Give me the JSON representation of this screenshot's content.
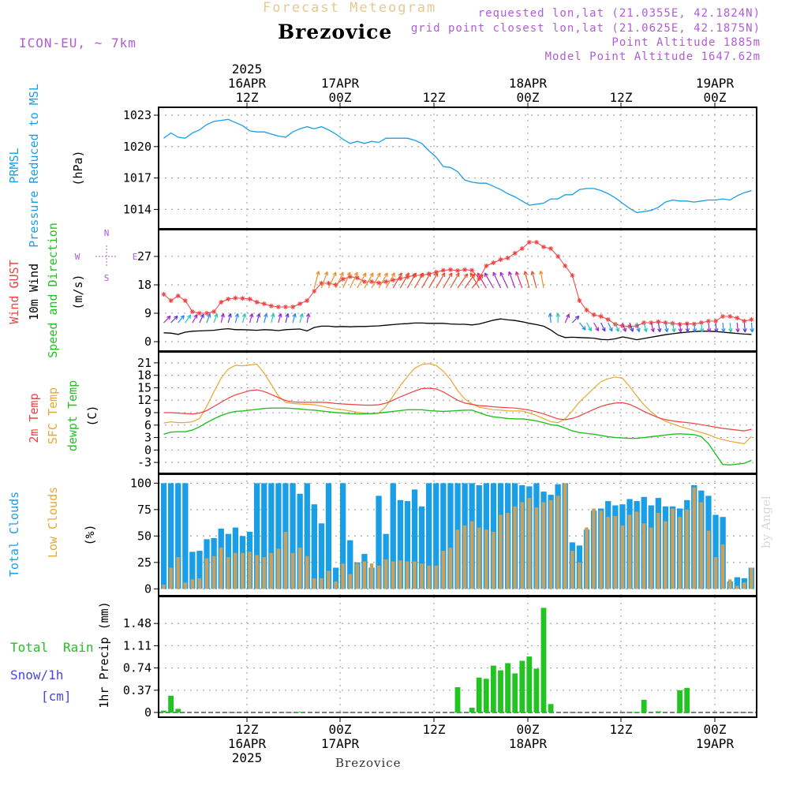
{
  "header": {
    "product": "Forecast Meteogram",
    "station": "Brezovice",
    "model": "ICON-EU, ~ 7km",
    "requested": "requested lon,lat (21.0355E, 42.1824N)",
    "gridpoint": "grid point closest lon,lat (21.0625E, 42.1875N)",
    "altitude": "Point Altitude 1885m",
    "model_altitude": "Model Point Altitude 1647.62m"
  },
  "footer": {
    "station": "Brezovice",
    "credit": "by Angel"
  },
  "colors": {
    "pressure": "#1a9ee6",
    "gust": "#f04040",
    "wind": "#000000",
    "t2m": "#f04040",
    "tsfc": "#e6a832",
    "dewpt": "#22c022",
    "total_clouds": "#1a9ee6",
    "low_clouds": "#c8a060",
    "rain": "#22c422",
    "snow": "#4646e6",
    "label_blue": "#1a9ee6",
    "label_red": "#f04040",
    "label_green": "#22c022",
    "label_gold": "#e6a832",
    "label_purple": "#b05cd6",
    "grid": "#999999"
  },
  "time_axis": {
    "top_labels": [
      [
        "2025",
        "16APR",
        "12Z"
      ],
      [
        "",
        "17APR",
        "00Z"
      ],
      [
        "",
        "",
        "12Z"
      ],
      [
        "",
        "18APR",
        "00Z"
      ],
      [
        "",
        "",
        "12Z"
      ],
      [
        "",
        "19APR",
        "00Z"
      ]
    ],
    "bottom_labels": [
      [
        "12Z",
        "16APR",
        "2025"
      ],
      [
        "00Z",
        "17APR",
        ""
      ],
      [
        "12Z",
        "",
        ""
      ],
      [
        "00Z",
        "18APR",
        ""
      ],
      [
        "12Z",
        "",
        ""
      ],
      [
        "00Z",
        "19APR",
        ""
      ]
    ]
  },
  "chart_data": [
    {
      "type": "line",
      "panel": "pressure",
      "ylabel": [
        "PRMSL",
        "Pressure Reduced to MSL"
      ],
      "unit": "(hPa)",
      "ylim": [
        1012.6,
        1023.3
      ],
      "yticks": [
        "1023",
        "1020",
        "1017",
        "1014"
      ],
      "yticks_values": [
        1023,
        1020,
        1017,
        1014
      ],
      "grid": true,
      "series": [
        {
          "name": "PRMSL",
          "values": [
            1020.8,
            1021.3,
            1020.9,
            1020.8,
            1021.3,
            1021.6,
            1022.1,
            1022.4,
            1022.5,
            1022.6,
            1022.3,
            1022.0,
            1021.5,
            1021.4,
            1021.4,
            1021.2,
            1021.0,
            1020.9,
            1021.4,
            1021.7,
            1021.9,
            1021.7,
            1021.9,
            1021.6,
            1021.2,
            1020.7,
            1020.3,
            1020.5,
            1020.3,
            1020.5,
            1020.4,
            1020.8,
            1020.8,
            1020.8,
            1020.8,
            1020.6,
            1020.3,
            1019.6,
            1019.0,
            1018.1,
            1018.0,
            1017.6,
            1016.8,
            1016.6,
            1016.5,
            1016.5,
            1016.2,
            1015.9,
            1015.5,
            1015.2,
            1014.8,
            1014.4,
            1014.5,
            1014.6,
            1015.0,
            1015.0,
            1015.4,
            1015.4,
            1015.9,
            1016.0,
            1016.0,
            1015.8,
            1015.5,
            1015.1,
            1014.6,
            1014.1,
            1013.7,
            1013.8,
            1013.9,
            1014.2,
            1014.7,
            1014.9,
            1014.8,
            1014.8,
            1014.7,
            1014.8,
            1014.9,
            1014.9,
            1015.0,
            1014.9,
            1015.3,
            1015.6,
            1015.8
          ]
        }
      ]
    },
    {
      "type": "line",
      "panel": "wind",
      "ylabel": [
        "Wind GUST",
        "10m Wind",
        "Speed and Direction"
      ],
      "unit": "(m/s)",
      "compass": {
        "n": "N",
        "s": "S",
        "e": "E",
        "w": "W"
      },
      "ylim": [
        -1.5,
        34
      ],
      "yticks": [
        "27",
        "18",
        "9",
        "0"
      ],
      "yticks_values": [
        27,
        18,
        9,
        0
      ],
      "grid": true,
      "series": [
        {
          "name": "Wind GUST",
          "values": [
            15.0,
            13.0,
            14.5,
            13.0,
            9.5,
            9.0,
            9.0,
            9.5,
            12.5,
            13.5,
            13.8,
            13.7,
            13.5,
            12.5,
            12.0,
            11.3,
            11.0,
            11.0,
            11.0,
            12.0,
            13.0,
            16.0,
            18.5,
            18.5,
            18.0,
            19.8,
            20.6,
            20.2,
            19.0,
            19.0,
            18.6,
            19.0,
            19.5,
            20.0,
            20.5,
            21.0,
            21.0,
            21.5,
            22.0,
            22.6,
            22.8,
            22.5,
            22.8,
            22.6,
            20.0,
            24.0,
            25.0,
            26.0,
            26.5,
            28.0,
            29.5,
            31.5,
            31.5,
            30.0,
            29.5,
            27.0,
            24.0,
            21.0,
            13.0,
            10.0,
            8.5,
            8.0,
            7.0,
            5.5,
            5.0,
            4.8,
            5.0,
            6.0,
            6.0,
            6.3,
            6.0,
            5.8,
            5.5,
            5.7,
            5.6,
            6.0,
            6.5,
            6.5,
            8.0,
            8.0,
            7.5,
            6.5,
            7.0
          ]
        },
        {
          "name": "10m Wind",
          "values": [
            2.8,
            2.7,
            2.3,
            3.0,
            3.3,
            3.4,
            3.5,
            3.6,
            3.9,
            4.1,
            3.8,
            3.8,
            3.7,
            3.6,
            3.8,
            3.7,
            3.5,
            3.8,
            3.9,
            4.0,
            3.4,
            4.5,
            4.9,
            4.9,
            4.7,
            4.8,
            4.7,
            4.8,
            4.8,
            4.9,
            5.0,
            5.2,
            5.4,
            5.6,
            5.7,
            5.9,
            5.9,
            5.8,
            5.8,
            5.8,
            5.6,
            5.5,
            5.5,
            5.3,
            5.6,
            6.2,
            6.8,
            7.2,
            6.9,
            6.7,
            6.3,
            5.8,
            5.4,
            4.9,
            3.7,
            2.1,
            1.3,
            1.4,
            1.3,
            1.2,
            1.1,
            0.7,
            0.6,
            0.9,
            1.5,
            1.1,
            0.6,
            1.0,
            1.4,
            1.8,
            2.2,
            2.5,
            2.8,
            3.0,
            3.2,
            3.3,
            3.3,
            3.2,
            3.0,
            2.8,
            2.6,
            2.4,
            2.3
          ]
        },
        {
          "name": "Wind direction (deg, from)",
          "values": [
            225,
            225,
            220,
            215,
            210,
            205,
            200,
            200,
            195,
            195,
            195,
            195,
            195,
            195,
            195,
            195,
            195,
            195,
            195,
            195,
            190,
            195,
            200,
            205,
            205,
            205,
            205,
            210,
            210,
            210,
            210,
            210,
            210,
            210,
            210,
            210,
            210,
            210,
            210,
            210,
            210,
            215,
            215,
            220,
            150,
            150,
            150,
            155,
            155,
            160,
            160,
            165,
            165,
            170,
            175,
            180,
            205,
            225,
            320,
            330,
            330,
            335,
            335,
            340,
            340,
            340,
            345,
            345,
            345,
            350,
            350,
            350,
            355,
            355,
            355,
            355,
            355,
            355,
            355,
            355,
            355,
            355,
            355
          ]
        }
      ]
    },
    {
      "type": "line",
      "panel": "temperature",
      "ylabel": [
        "2m Temp",
        "SFC Temp",
        "dewpt Temp"
      ],
      "unit": "(C)",
      "ylim": [
        -4.5,
        22.5
      ],
      "yticks": [
        "21",
        "18",
        "15",
        "12",
        "9",
        "6",
        "3",
        "0",
        "-3"
      ],
      "yticks_values": [
        21,
        18,
        15,
        12,
        9,
        6,
        3,
        0,
        -3
      ],
      "grid": true,
      "series": [
        {
          "name": "2m Temp",
          "values": [
            9.0,
            9.0,
            8.9,
            8.8,
            8.7,
            8.9,
            9.5,
            10.5,
            11.5,
            12.5,
            13.3,
            13.8,
            14.3,
            14.5,
            14.1,
            13.4,
            12.6,
            11.9,
            11.6,
            11.5,
            11.5,
            11.5,
            11.5,
            11.4,
            11.2,
            11.1,
            11.0,
            10.9,
            10.8,
            10.8,
            10.9,
            11.3,
            12.0,
            12.8,
            13.5,
            14.2,
            14.8,
            14.9,
            14.7,
            14.0,
            13.0,
            12.0,
            11.3,
            11.0,
            10.7,
            10.6,
            10.4,
            10.3,
            10.2,
            10.1,
            9.9,
            9.6,
            9.2,
            8.7,
            8.1,
            7.5,
            7.3,
            7.6,
            8.2,
            9.0,
            9.8,
            10.5,
            11.0,
            11.3,
            11.4,
            11.0,
            10.2,
            9.3,
            8.5,
            7.8,
            7.3,
            7.0,
            6.8,
            6.6,
            6.4,
            6.1,
            5.8,
            5.5,
            5.2,
            5.0,
            4.8,
            4.6,
            5.0
          ]
        },
        {
          "name": "SFC Temp",
          "values": [
            6.5,
            6.8,
            6.6,
            6.6,
            6.8,
            7.6,
            10.5,
            14.0,
            17.3,
            19.5,
            20.4,
            20.3,
            20.5,
            20.7,
            18.5,
            15.8,
            13.0,
            11.5,
            11.2,
            11.1,
            11.0,
            10.9,
            10.6,
            10.2,
            9.9,
            9.7,
            9.4,
            9.1,
            8.9,
            8.7,
            8.9,
            10.5,
            13.0,
            15.5,
            17.7,
            19.7,
            20.6,
            20.8,
            20.4,
            19.0,
            17.0,
            14.3,
            12.3,
            11.1,
            10.3,
            10.0,
            9.7,
            9.6,
            9.4,
            9.4,
            9.4,
            8.9,
            8.3,
            7.6,
            6.8,
            6.6,
            7.5,
            9.4,
            11.6,
            13.2,
            14.9,
            16.5,
            17.2,
            17.6,
            17.3,
            15.3,
            13.0,
            10.9,
            9.2,
            7.8,
            6.9,
            6.3,
            5.7,
            5.2,
            4.7,
            4.2,
            3.7,
            3.0,
            2.5,
            2.1,
            1.8,
            1.5,
            3.3
          ]
        },
        {
          "name": "dewpt Temp",
          "values": [
            3.8,
            4.3,
            4.4,
            4.4,
            4.8,
            5.6,
            6.6,
            7.5,
            8.3,
            8.9,
            9.3,
            9.4,
            9.6,
            9.8,
            10.0,
            10.1,
            10.1,
            10.1,
            10.0,
            9.9,
            9.7,
            9.6,
            9.4,
            9.2,
            9.0,
            8.9,
            8.8,
            8.7,
            8.7,
            8.8,
            8.9,
            9.1,
            9.3,
            9.5,
            9.7,
            9.7,
            9.7,
            9.5,
            9.4,
            9.3,
            9.4,
            9.5,
            9.6,
            9.6,
            9.0,
            8.4,
            8.0,
            7.8,
            7.6,
            7.5,
            7.5,
            7.3,
            7.0,
            6.6,
            6.1,
            5.9,
            5.3,
            4.6,
            4.2,
            4.0,
            3.8,
            3.5,
            3.2,
            3.0,
            2.9,
            2.8,
            2.8,
            3.0,
            3.2,
            3.4,
            3.6,
            3.8,
            3.9,
            3.8,
            3.7,
            3.2,
            1.5,
            -1.0,
            -3.5,
            -3.6,
            -3.4,
            -3.2,
            -2.5
          ]
        }
      ]
    },
    {
      "type": "bar",
      "panel": "clouds",
      "ylabel": [
        "Total Clouds",
        "Low Clouds"
      ],
      "unit": "(%)",
      "ylim": [
        -2,
        104
      ],
      "yticks": [
        "100",
        "75",
        "50",
        "25",
        "0"
      ],
      "yticks_values": [
        100,
        75,
        50,
        25,
        0
      ],
      "grid": true,
      "series": [
        {
          "name": "Total Clouds",
          "values": [
            100,
            100,
            100,
            100,
            35,
            36,
            47,
            48,
            57,
            52,
            58,
            50,
            54,
            100,
            100,
            100,
            100,
            100,
            100,
            90,
            100,
            80,
            62,
            100,
            20,
            100,
            46,
            25,
            33,
            20,
            88,
            52,
            100,
            84,
            83,
            94,
            78,
            100,
            100,
            100,
            100,
            100,
            100,
            100,
            98,
            100,
            100,
            100,
            100,
            100,
            98,
            97,
            100,
            92,
            89,
            99,
            100,
            44,
            41,
            56,
            74,
            76,
            83,
            79,
            80,
            85,
            83,
            87,
            79,
            86,
            78,
            78,
            76,
            84,
            98,
            93,
            88,
            70,
            68,
            7,
            11,
            10,
            20
          ]
        },
        {
          "name": "Low Clouds",
          "values": [
            4,
            20,
            30,
            6,
            9,
            10,
            29,
            31,
            39,
            30,
            34,
            34,
            35,
            32,
            30,
            34,
            38,
            54,
            34,
            39,
            31,
            10,
            10,
            17,
            7,
            24,
            14,
            24,
            26,
            24,
            22,
            28,
            26,
            27,
            26,
            26,
            24,
            22,
            22,
            36,
            39,
            56,
            60,
            64,
            58,
            56,
            54,
            70,
            72,
            78,
            82,
            86,
            77,
            82,
            84,
            88,
            100,
            36,
            25,
            58,
            76,
            74,
            68,
            69,
            60,
            70,
            73,
            62,
            58,
            72,
            64,
            76,
            68,
            75,
            96,
            82,
            55,
            30,
            42,
            9,
            3,
            6,
            20
          ]
        }
      ]
    },
    {
      "type": "bar",
      "panel": "precip",
      "ylabel": [
        "1hr Precip (mm)"
      ],
      "side_labels": [
        "Total",
        "Rain",
        "Snow/1h",
        "[cm]"
      ],
      "ylim": [
        0,
        1.85
      ],
      "yticks": [
        "1.48",
        "1.11",
        "0.74",
        "0.37",
        "0"
      ],
      "yticks_values": [
        1.48,
        1.11,
        0.74,
        0.37,
        0
      ],
      "grid": true,
      "series": [
        {
          "name": "Total Rain",
          "values": [
            0.03,
            0.28,
            0.06,
            0,
            0,
            0,
            0,
            0,
            0,
            0,
            0,
            0,
            0,
            0,
            0,
            0,
            0,
            0,
            0,
            0.01,
            0,
            0,
            0,
            0,
            0,
            0,
            0,
            0,
            0,
            0,
            0,
            0,
            0,
            0,
            0,
            0,
            0,
            0,
            0,
            0,
            0,
            0.42,
            0,
            0.08,
            0.58,
            0.56,
            0.78,
            0.7,
            0.82,
            0.65,
            0.86,
            0.93,
            0.73,
            1.74,
            0.14,
            0,
            0,
            0,
            0,
            0,
            0,
            0,
            0,
            0,
            0,
            0,
            0.01,
            0.21,
            0,
            0.02,
            0,
            0,
            0.37,
            0.41,
            0,
            0,
            0,
            0,
            0,
            0,
            0,
            0,
            0
          ]
        }
      ]
    }
  ]
}
